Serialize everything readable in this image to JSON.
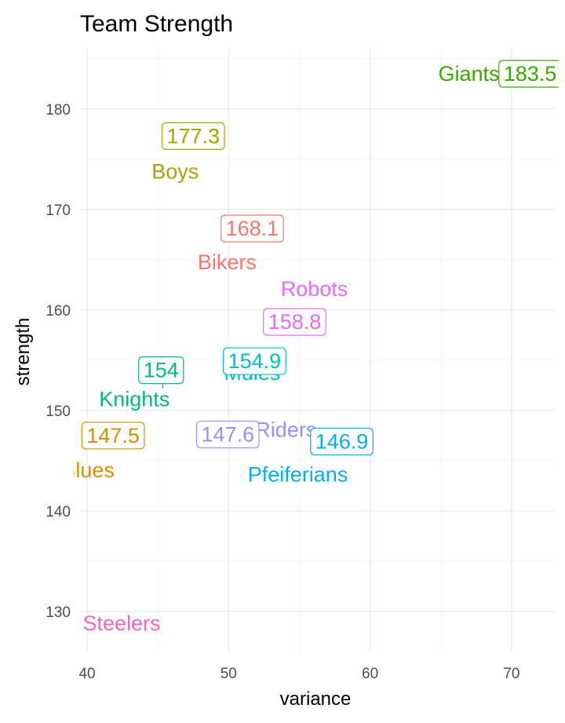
{
  "chart_data": {
    "type": "scatter",
    "title": "Team Strength",
    "xlabel": "variance",
    "ylabel": "strength",
    "xlim": [
      39.5,
      73
    ],
    "ylim": [
      126,
      186
    ],
    "x_ticks": [
      40,
      50,
      60,
      70
    ],
    "y_ticks": [
      130,
      140,
      150,
      160,
      170,
      180
    ],
    "grid": true,
    "legend": "none",
    "points": [
      {
        "team": "Giants",
        "variance": 70.2,
        "strength": 183.5,
        "label": "183.5",
        "color": "#3aaa00"
      },
      {
        "team": "Boys",
        "variance": 48.0,
        "strength": 177.3,
        "label": "177.3",
        "color": "#a3a500"
      },
      {
        "team": "Bikers",
        "variance": 52.0,
        "strength": 168.1,
        "label": "168.1",
        "color": "#f8766d"
      },
      {
        "team": "Robots",
        "variance": 55.5,
        "strength": 158.8,
        "label": "158.8",
        "color": "#e76bf3"
      },
      {
        "team": "Mules",
        "variance": 52.5,
        "strength": 154.9,
        "label": "154.9",
        "color": "#00bfc4"
      },
      {
        "team": "Knights",
        "variance": 48.0,
        "strength": 154.0,
        "label": "154",
        "color": "#00b981"
      },
      {
        "team": "Blues",
        "variance": 43.5,
        "strength": 147.5,
        "label": "147.5",
        "color": "#d89000"
      },
      {
        "team": "Riders",
        "variance": 50.0,
        "strength": 147.6,
        "label": "147.6",
        "color": "#9590ff"
      },
      {
        "team": "Pfeiferians",
        "variance": 58.0,
        "strength": 146.9,
        "label": "146.9",
        "color": "#00b0f6"
      },
      {
        "team": "Steelers",
        "variance": 40.5,
        "strength": 128.8,
        "label": "128.8",
        "color": "#ff62bc"
      }
    ]
  }
}
